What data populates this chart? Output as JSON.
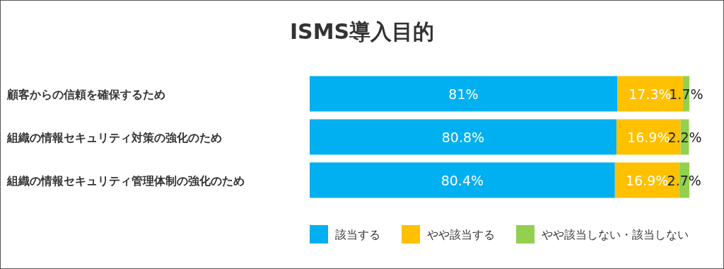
{
  "chart_data": {
    "type": "bar",
    "orientation": "horizontal",
    "stacked": true,
    "title": "ISMS導入目的",
    "categories": [
      "顧客からの信頼を確保するため",
      "組織の情報セキュリティ対策の強化のため",
      "組織の情報セキュリティ管理体制の強化のため"
    ],
    "series": [
      {
        "name": "該当する",
        "color": "#00b0f0",
        "values": [
          81,
          80.8,
          80.4
        ],
        "value_labels": [
          "81%",
          "80.8%",
          "80.4%"
        ]
      },
      {
        "name": "やや該当する",
        "color": "#ffc000",
        "values": [
          17.3,
          16.9,
          16.9
        ],
        "value_labels": [
          "17.3%",
          "16.9%",
          "16.9%"
        ]
      },
      {
        "name": "やや該当しない・該当しない",
        "color": "#92d050",
        "values": [
          1.7,
          2.2,
          2.7
        ],
        "value_labels": [
          "1.7%",
          "2.2%",
          "2.7%"
        ]
      }
    ],
    "legend": "bottom"
  }
}
